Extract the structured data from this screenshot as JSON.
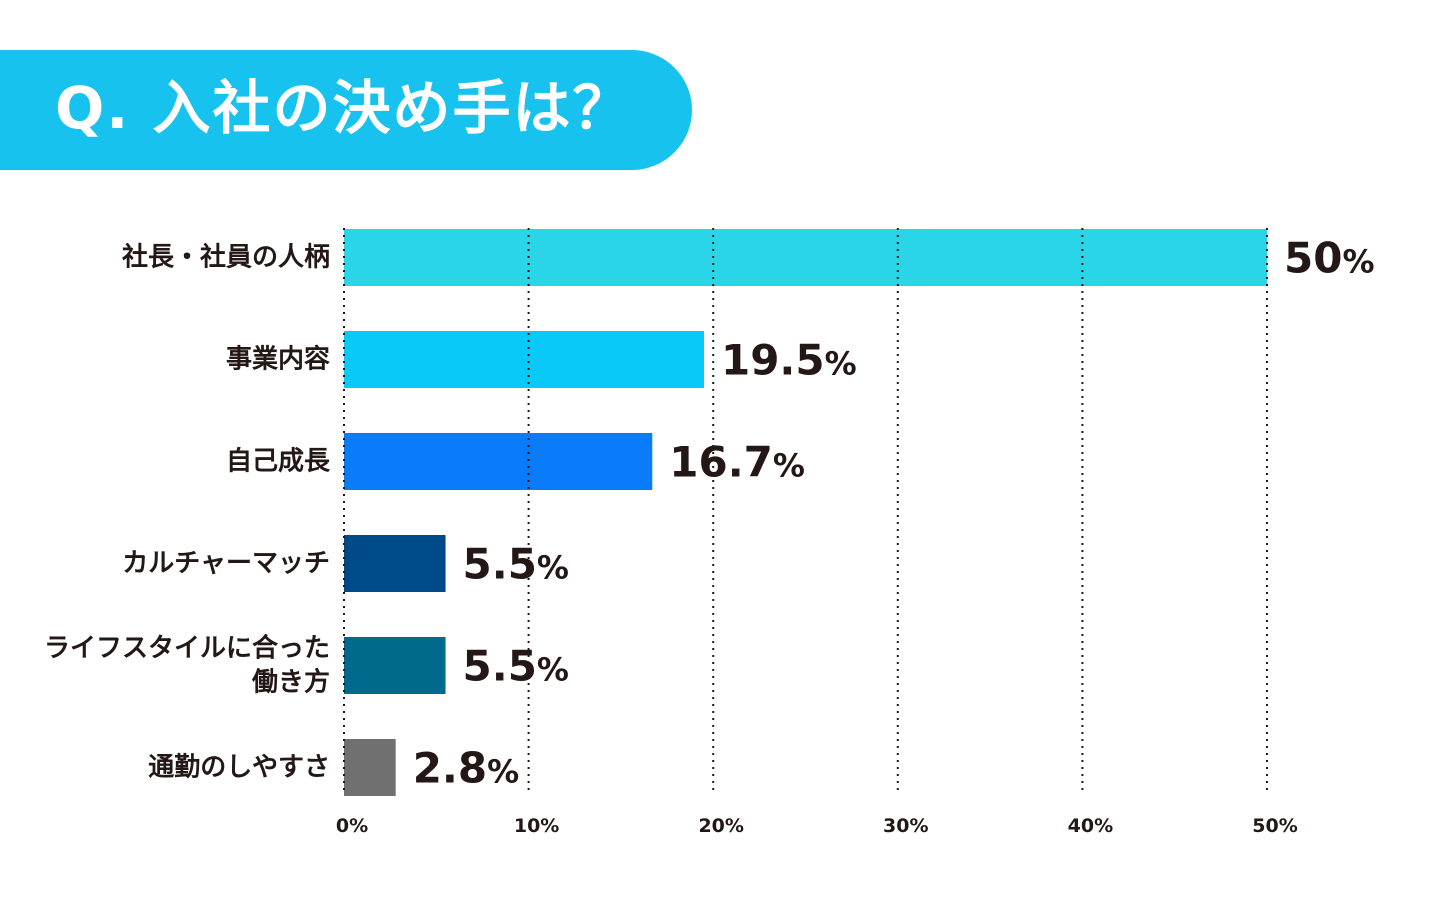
{
  "header": {
    "title": "Q. 入社の決め手は？"
  },
  "colors": {
    "banner": "#17c3ee",
    "text": "#231815",
    "grid": "#231815"
  },
  "chart_data": {
    "type": "bar",
    "orientation": "horizontal",
    "title": "Q. 入社の決め手は？",
    "xlabel": "",
    "ylabel": "",
    "xlim": [
      0,
      50
    ],
    "grid": true,
    "unit": "%",
    "xticks": [
      0,
      10,
      20,
      30,
      40,
      50
    ],
    "xtick_labels": [
      "0%",
      "10%",
      "20%",
      "30%",
      "40%",
      "50%"
    ],
    "categories": [
      [
        "社長・社員の人柄"
      ],
      [
        "事業内容"
      ],
      [
        "自己成長"
      ],
      [
        "カルチャーマッチ"
      ],
      [
        "ライフスタイルに合った",
        "働き方"
      ],
      [
        "通勤のしやすさ"
      ]
    ],
    "values": [
      50,
      19.5,
      16.7,
      5.5,
      5.5,
      2.8
    ],
    "value_labels": [
      "50",
      "19.5",
      "16.7",
      "5.5",
      "5.5",
      "2.8"
    ],
    "bar_colors": [
      "#29d5e6",
      "#08c9f8",
      "#0a7cf9",
      "#004a89",
      "#006a8c",
      "#707070"
    ]
  }
}
